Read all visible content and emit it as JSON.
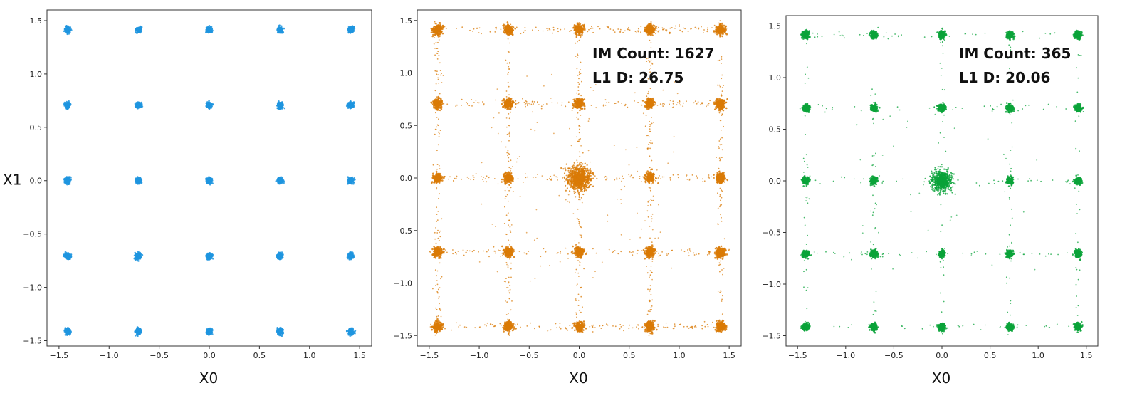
{
  "chart_data": [
    {
      "type": "scatter",
      "xlabel": "X0",
      "ylabel": "X1",
      "xlim": [
        -1.62,
        1.62
      ],
      "ylim": [
        -1.55,
        1.6
      ],
      "x_ticks": [
        -1.5,
        -1.0,
        -0.5,
        0.0,
        0.5,
        1.0,
        1.5
      ],
      "x_tick_labels": [
        "−1.5",
        "−1.0",
        "−0.5",
        "0.0",
        "0.5",
        "1.0",
        "1.5"
      ],
      "y_ticks": [
        -1.5,
        -1.0,
        -0.5,
        0.0,
        0.5,
        1.0,
        1.5
      ],
      "y_tick_labels": [
        "−1.5",
        "−1.0",
        "−0.5",
        "0.0",
        "0.5",
        "1.0",
        "1.5"
      ],
      "color": "#1f95df",
      "grid": false,
      "cluster_centers": [
        -1.414,
        -0.707,
        0.0,
        0.707,
        1.414
      ],
      "cluster_spread": 0.035,
      "annotations": []
    },
    {
      "type": "scatter",
      "xlabel": "X0",
      "ylabel": "",
      "xlim": [
        -1.62,
        1.62
      ],
      "ylim": [
        -1.6,
        1.6
      ],
      "x_ticks": [
        -1.5,
        -1.0,
        -0.5,
        0.0,
        0.5,
        1.0,
        1.5
      ],
      "x_tick_labels": [
        "−1.5",
        "−1.0",
        "−0.5",
        "0.0",
        "0.5",
        "1.0",
        "1.5"
      ],
      "y_ticks": [
        -1.5,
        -1.0,
        -0.5,
        0.0,
        0.5,
        1.0,
        1.5
      ],
      "y_tick_labels": [
        "−1.5",
        "−1.0",
        "−0.5",
        "0.0",
        "0.5",
        "1.0",
        "1.5"
      ],
      "color": "#d97a06",
      "grid": false,
      "cluster_centers": [
        -1.414,
        -0.707,
        0.0,
        0.707,
        1.414
      ],
      "cluster_spread": 0.06,
      "annotations": [
        "IM Count: 1627",
        "L1 D: 26.75"
      ]
    },
    {
      "type": "scatter",
      "xlabel": "X0",
      "ylabel": "",
      "xlim": [
        -1.62,
        1.62
      ],
      "ylim": [
        -1.6,
        1.6
      ],
      "x_ticks": [
        -1.5,
        -1.0,
        -0.5,
        0.0,
        0.5,
        1.0,
        1.5
      ],
      "x_tick_labels": [
        "−1.5",
        "−1.0",
        "−0.5",
        "0.0",
        "0.5",
        "1.0",
        "1.5"
      ],
      "y_ticks": [
        -1.5,
        -1.0,
        -0.5,
        0.0,
        0.5,
        1.0,
        1.5
      ],
      "y_tick_labels": [
        "−1.5",
        "−1.0",
        "−0.5",
        "0.0",
        "0.5",
        "1.0",
        "1.5"
      ],
      "color": "#0aa33a",
      "grid": false,
      "cluster_centers": [
        -1.414,
        -0.707,
        0.0,
        0.707,
        1.414
      ],
      "cluster_spread": 0.045,
      "annotations": [
        "IM Count: 365",
        "L1 D: 20.06"
      ]
    }
  ]
}
